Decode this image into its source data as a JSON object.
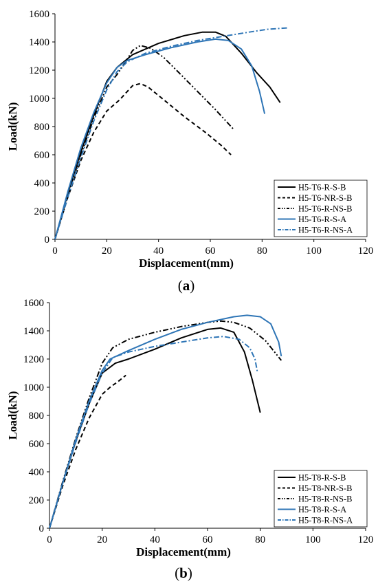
{
  "colors": {
    "black": "#000000",
    "blue": "#2E75B6"
  },
  "chart_data": [
    {
      "type": "line",
      "caption": {
        "open": "(",
        "letter": "a",
        "close": ")"
      },
      "xlabel": "Displacement(mm)",
      "ylabel": "Load(kN)",
      "xlim": [
        0,
        120
      ],
      "ylim": [
        0,
        1600
      ],
      "xticks": [
        0,
        20,
        40,
        60,
        80,
        100,
        120
      ],
      "yticks": [
        0,
        200,
        400,
        600,
        800,
        1000,
        1200,
        1400,
        1600
      ],
      "grid": false,
      "legend_position": "bottom-right",
      "series": [
        {
          "name": "H5-T6-R-S-B",
          "color": "#000000",
          "dash": "solid",
          "points": [
            [
              0,
              0
            ],
            [
              5,
              330
            ],
            [
              10,
              620
            ],
            [
              15,
              880
            ],
            [
              20,
              1120
            ],
            [
              24,
              1220
            ],
            [
              30,
              1310
            ],
            [
              40,
              1390
            ],
            [
              50,
              1445
            ],
            [
              57,
              1470
            ],
            [
              62,
              1470
            ],
            [
              66,
              1440
            ],
            [
              72,
              1320
            ],
            [
              78,
              1180
            ],
            [
              83,
              1080
            ],
            [
              87,
              970
            ]
          ]
        },
        {
          "name": "H5-T6-NR-S-B",
          "color": "#000000",
          "dash": "dashed",
          "points": [
            [
              0,
              0
            ],
            [
              5,
              300
            ],
            [
              10,
              560
            ],
            [
              15,
              760
            ],
            [
              20,
              910
            ],
            [
              25,
              990
            ],
            [
              30,
              1090
            ],
            [
              33,
              1105
            ],
            [
              36,
              1080
            ],
            [
              42,
              990
            ],
            [
              50,
              870
            ],
            [
              58,
              760
            ],
            [
              64,
              670
            ],
            [
              68,
              600
            ]
          ]
        },
        {
          "name": "H5-T6-R-NS-B",
          "color": "#000000",
          "dash": "dashdotdot",
          "points": [
            [
              0,
              0
            ],
            [
              5,
              320
            ],
            [
              10,
              600
            ],
            [
              15,
              860
            ],
            [
              20,
              1080
            ],
            [
              24,
              1170
            ],
            [
              27,
              1250
            ],
            [
              30,
              1340
            ],
            [
              33,
              1375
            ],
            [
              37,
              1355
            ],
            [
              42,
              1290
            ],
            [
              48,
              1180
            ],
            [
              55,
              1050
            ],
            [
              62,
              920
            ],
            [
              69,
              780
            ]
          ]
        },
        {
          "name": "H5-T6-R-S-A",
          "color": "#2E75B6",
          "dash": "solid",
          "points": [
            [
              0,
              0
            ],
            [
              5,
              340
            ],
            [
              10,
              650
            ],
            [
              15,
              900
            ],
            [
              20,
              1110
            ],
            [
              24,
              1220
            ],
            [
              28,
              1270
            ],
            [
              35,
              1310
            ],
            [
              45,
              1360
            ],
            [
              55,
              1400
            ],
            [
              62,
              1420
            ],
            [
              67,
              1410
            ],
            [
              72,
              1350
            ],
            [
              76,
              1230
            ],
            [
              79,
              1050
            ],
            [
              81,
              890
            ]
          ]
        },
        {
          "name": "H5-T6-R-NS-A",
          "color": "#2E75B6",
          "dash": "dashdot",
          "points": [
            [
              0,
              0
            ],
            [
              5,
              300
            ],
            [
              10,
              580
            ],
            [
              15,
              840
            ],
            [
              20,
              1060
            ],
            [
              24,
              1190
            ],
            [
              28,
              1260
            ],
            [
              35,
              1320
            ],
            [
              45,
              1370
            ],
            [
              55,
              1410
            ],
            [
              65,
              1440
            ],
            [
              75,
              1470
            ],
            [
              82,
              1490
            ],
            [
              90,
              1500
            ]
          ]
        }
      ]
    },
    {
      "type": "line",
      "caption": {
        "open": "(",
        "letter": "b",
        "close": ")"
      },
      "xlabel": "Displacement(mm)",
      "ylabel": "Load(kN)",
      "xlim": [
        0,
        120
      ],
      "ylim": [
        0,
        1600
      ],
      "xticks": [
        0,
        20,
        40,
        60,
        80,
        100,
        120
      ],
      "yticks": [
        0,
        200,
        400,
        600,
        800,
        1000,
        1200,
        1400,
        1600
      ],
      "grid": false,
      "legend_position": "bottom-right",
      "series": [
        {
          "name": "H5-T8-R-S-B",
          "color": "#000000",
          "dash": "solid",
          "points": [
            [
              0,
              0
            ],
            [
              5,
              320
            ],
            [
              10,
              620
            ],
            [
              15,
              880
            ],
            [
              20,
              1100
            ],
            [
              25,
              1170
            ],
            [
              30,
              1200
            ],
            [
              40,
              1270
            ],
            [
              50,
              1350
            ],
            [
              60,
              1410
            ],
            [
              65,
              1420
            ],
            [
              70,
              1390
            ],
            [
              74,
              1250
            ],
            [
              77,
              1050
            ],
            [
              80,
              820
            ]
          ]
        },
        {
          "name": "H5-T8-NR-S-B",
          "color": "#000000",
          "dash": "dashed",
          "points": [
            [
              0,
              0
            ],
            [
              5,
              300
            ],
            [
              10,
              560
            ],
            [
              15,
              780
            ],
            [
              20,
              950
            ],
            [
              23,
              1000
            ],
            [
              26,
              1040
            ],
            [
              29,
              1085
            ]
          ]
        },
        {
          "name": "H5-T8-R-NS-B",
          "color": "#000000",
          "dash": "dashdotdot",
          "points": [
            [
              0,
              0
            ],
            [
              5,
              330
            ],
            [
              10,
              640
            ],
            [
              15,
              920
            ],
            [
              20,
              1170
            ],
            [
              24,
              1280
            ],
            [
              30,
              1340
            ],
            [
              40,
              1390
            ],
            [
              50,
              1430
            ],
            [
              60,
              1460
            ],
            [
              65,
              1470
            ],
            [
              70,
              1460
            ],
            [
              76,
              1420
            ],
            [
              82,
              1330
            ],
            [
              88,
              1190
            ]
          ]
        },
        {
          "name": "H5-T8-R-S-A",
          "color": "#2E75B6",
          "dash": "solid",
          "points": [
            [
              0,
              0
            ],
            [
              5,
              320
            ],
            [
              10,
              630
            ],
            [
              15,
              900
            ],
            [
              20,
              1120
            ],
            [
              23,
              1200
            ],
            [
              30,
              1260
            ],
            [
              40,
              1340
            ],
            [
              50,
              1410
            ],
            [
              60,
              1460
            ],
            [
              70,
              1500
            ],
            [
              75,
              1510
            ],
            [
              80,
              1500
            ],
            [
              84,
              1450
            ],
            [
              87,
              1320
            ],
            [
              88,
              1220
            ]
          ]
        },
        {
          "name": "H5-T8-R-NS-A",
          "color": "#2E75B6",
          "dash": "dashdot",
          "points": [
            [
              0,
              0
            ],
            [
              5,
              320
            ],
            [
              10,
              610
            ],
            [
              15,
              880
            ],
            [
              20,
              1100
            ],
            [
              24,
              1210
            ],
            [
              30,
              1250
            ],
            [
              40,
              1290
            ],
            [
              50,
              1320
            ],
            [
              60,
              1350
            ],
            [
              66,
              1360
            ],
            [
              72,
              1340
            ],
            [
              76,
              1280
            ],
            [
              78,
              1200
            ],
            [
              79,
              1100
            ]
          ]
        }
      ]
    }
  ]
}
